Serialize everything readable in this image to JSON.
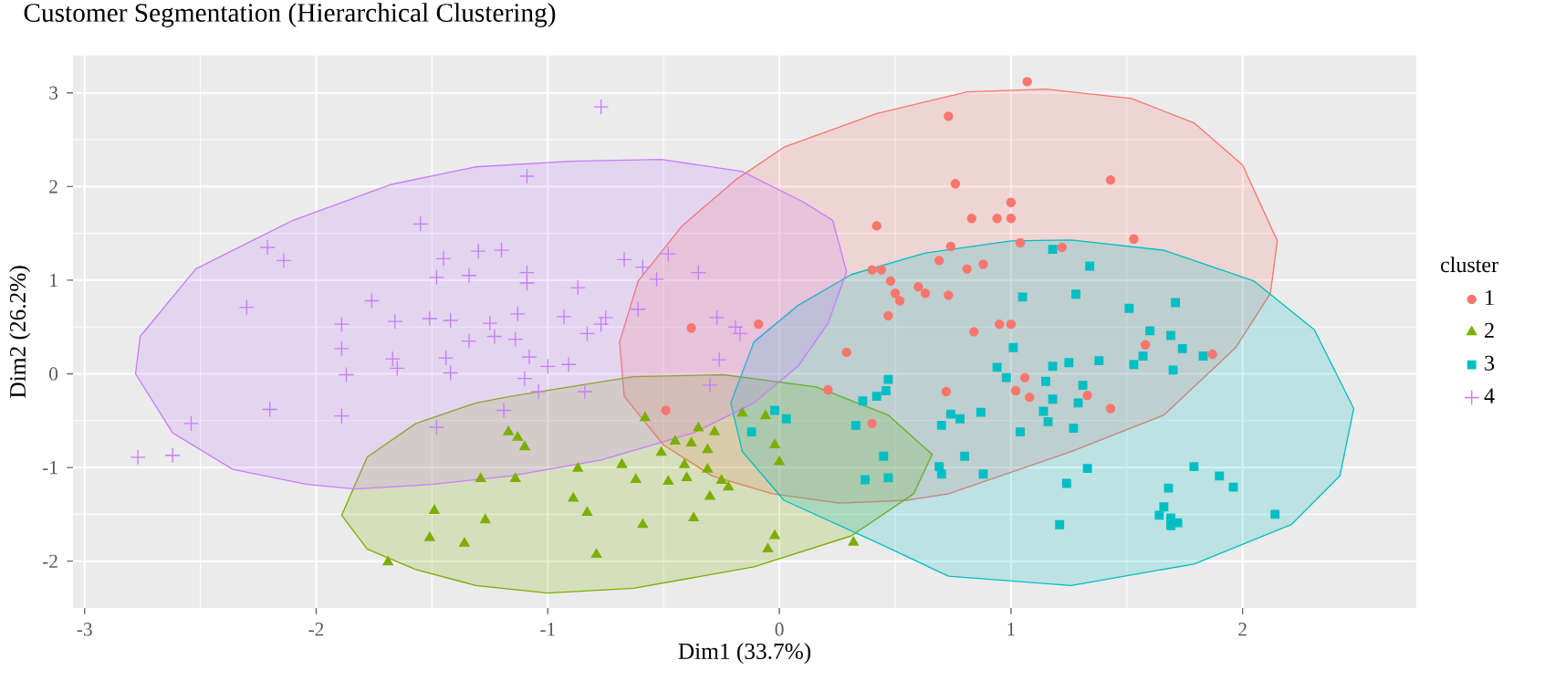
{
  "chart_data": {
    "type": "scatter",
    "title": "Customer Segmentation (Hierarchical Clustering)",
    "xlabel": "Dim1 (33.7%)",
    "ylabel": "Dim2 (26.2%)",
    "legend_title": "cluster",
    "legend": "right",
    "grid": true,
    "xlim": [
      -3.05,
      2.75
    ],
    "ylim": [
      -2.5,
      3.4
    ],
    "xticks": [
      -3,
      -2,
      -1,
      0,
      1,
      2
    ],
    "yticks": [
      -2,
      -1,
      0,
      1,
      2,
      3
    ],
    "series": [
      {
        "name": "1",
        "marker": "circle",
        "color": "#f8766d",
        "x": [
          0.73,
          0.76,
          0.42,
          0.74,
          0.69,
          0.4,
          0.44,
          0.48,
          0.6,
          0.63,
          0.5,
          0.52,
          0.73,
          0.47,
          0.29,
          0.21,
          0.4,
          0.72,
          -0.38,
          -0.09,
          -0.49,
          0.81,
          1.07,
          1.43,
          1.0,
          0.83,
          0.94,
          1.0,
          1.53,
          1.04,
          1.22,
          0.88,
          0.95,
          1.0,
          0.84,
          1.58,
          1.87,
          1.06,
          1.02,
          1.08,
          1.33,
          1.43
        ],
        "values": [
          2.75,
          2.03,
          1.58,
          1.36,
          1.21,
          1.11,
          1.11,
          0.99,
          0.93,
          0.86,
          0.86,
          0.78,
          0.84,
          0.62,
          0.23,
          -0.17,
          -0.53,
          -0.19,
          0.49,
          0.53,
          -0.39,
          1.12,
          3.12,
          2.07,
          1.83,
          1.66,
          1.66,
          1.66,
          1.44,
          1.4,
          1.35,
          1.17,
          0.53,
          0.53,
          0.45,
          0.31,
          0.21,
          -0.04,
          -0.18,
          -0.25,
          -0.23,
          -0.37
        ]
      },
      {
        "name": "2",
        "marker": "triangle",
        "color": "#7cae00",
        "x": [
          -1.49,
          -1.51,
          -1.36,
          -1.27,
          -1.69,
          -1.29,
          -1.14,
          -1.17,
          -1.13,
          -1.1,
          -0.87,
          -0.68,
          -0.62,
          -0.48,
          -0.4,
          -0.41,
          -0.31,
          -0.25,
          -0.22,
          -0.51,
          -0.45,
          -0.38,
          -0.31,
          -0.35,
          -0.28,
          -0.58,
          -0.16,
          -0.06,
          -0.02,
          0.0,
          -0.89,
          -0.83,
          -0.59,
          -0.37,
          -0.3,
          -0.79,
          -0.02,
          -0.05,
          0.32
        ],
        "values": [
          -1.46,
          -1.75,
          -1.81,
          -1.56,
          -2.01,
          -1.12,
          -1.12,
          -0.62,
          -0.68,
          -0.78,
          -1.01,
          -0.97,
          -1.13,
          -1.15,
          -1.11,
          -0.97,
          -1.02,
          -1.14,
          -1.21,
          -0.84,
          -0.72,
          -0.74,
          -0.81,
          -0.58,
          -0.62,
          -0.47,
          -0.42,
          -0.45,
          -0.76,
          -0.94,
          -1.33,
          -1.48,
          -1.61,
          -1.54,
          -1.31,
          -1.93,
          -1.73,
          -1.87,
          -1.8
        ]
      },
      {
        "name": "3",
        "marker": "square",
        "color": "#00bfc4",
        "x": [
          0.47,
          0.46,
          0.42,
          0.36,
          -0.02,
          0.03,
          -0.12,
          0.33,
          0.7,
          0.74,
          0.78,
          0.45,
          0.8,
          0.69,
          0.7,
          0.47,
          0.37,
          1.18,
          1.34,
          1.05,
          1.28,
          1.51,
          1.71,
          1.6,
          1.69,
          1.74,
          1.83,
          1.57,
          1.53,
          1.7,
          1.38,
          1.25,
          1.18,
          1.01,
          0.94,
          0.98,
          1.15,
          1.31,
          1.18,
          1.29,
          1.14,
          1.16,
          1.27,
          1.04,
          0.87,
          0.88,
          1.33,
          1.24,
          1.21,
          1.79,
          1.9,
          1.96,
          1.68,
          1.66,
          1.64,
          1.69,
          1.69,
          1.72,
          2.14
        ],
        "values": [
          -0.06,
          -0.18,
          -0.24,
          -0.29,
          -0.39,
          -0.48,
          -0.62,
          -0.55,
          -0.55,
          -0.43,
          -0.48,
          -0.88,
          -0.88,
          -0.99,
          -1.07,
          -1.11,
          -1.13,
          1.33,
          1.15,
          0.82,
          0.85,
          0.7,
          0.76,
          0.46,
          0.41,
          0.27,
          0.19,
          0.19,
          0.1,
          0.04,
          0.14,
          0.12,
          0.08,
          0.28,
          0.07,
          -0.04,
          -0.08,
          -0.12,
          -0.27,
          -0.31,
          -0.4,
          -0.51,
          -0.58,
          -0.62,
          -0.41,
          -1.07,
          -1.01,
          -1.17,
          -1.61,
          -0.99,
          -1.09,
          -1.21,
          -1.22,
          -1.42,
          -1.51,
          -1.54,
          -1.62,
          -1.59,
          -1.5
        ]
      },
      {
        "name": "4",
        "marker": "cross",
        "color": "#c77cff",
        "x": [
          -1.55,
          -2.21,
          -2.14,
          -1.45,
          -1.48,
          -1.34,
          -1.3,
          -1.2,
          -2.3,
          -1.76,
          -1.89,
          -1.66,
          -1.51,
          -1.42,
          -1.25,
          -1.13,
          -1.34,
          -1.23,
          -1.14,
          -1.89,
          -1.67,
          -1.65,
          -1.44,
          -1.42,
          -1.87,
          -2.2,
          -1.89,
          -1.19,
          -2.54,
          -2.77,
          -2.62,
          -1.48,
          -0.77,
          -1.09,
          -0.67,
          -0.59,
          -0.48,
          -0.53,
          -0.35,
          -1.09,
          -1.09,
          -0.87,
          -0.93,
          -0.75,
          -0.77,
          -0.61,
          -0.27,
          -0.19,
          -0.17,
          -0.83,
          -1.08,
          -1.0,
          -0.91,
          -0.26,
          -1.1,
          -0.84,
          -0.3,
          -1.04
        ],
        "values": [
          1.6,
          1.35,
          1.21,
          1.23,
          1.03,
          1.05,
          1.31,
          1.32,
          0.71,
          0.78,
          0.53,
          0.56,
          0.59,
          0.57,
          0.54,
          0.64,
          0.35,
          0.4,
          0.37,
          0.27,
          0.16,
          0.06,
          0.17,
          0.01,
          -0.01,
          -0.38,
          -0.45,
          -0.39,
          -0.53,
          -0.89,
          -0.87,
          -0.57,
          2.85,
          2.11,
          1.22,
          1.14,
          1.28,
          1.01,
          1.08,
          1.08,
          0.97,
          0.92,
          0.61,
          0.6,
          0.53,
          0.69,
          0.6,
          0.5,
          0.43,
          0.43,
          0.18,
          0.08,
          0.1,
          0.15,
          -0.05,
          -0.19,
          -0.12,
          -0.19
        ]
      },
      {
        "type": "area",
        "color": "#f8766d",
        "x": [
          -0.69,
          -0.61,
          -0.42,
          -0.19,
          0.02,
          0.42,
          0.81,
          1.15,
          1.52,
          1.79,
          2.0,
          2.15,
          2.12,
          1.97,
          1.66,
          1.26,
          0.73,
          0.55,
          0.26,
          -0.03,
          -0.29,
          -0.5,
          -0.67,
          -0.69
        ],
        "values": [
          0.34,
          0.99,
          1.58,
          2.07,
          2.42,
          2.78,
          3.01,
          3.04,
          2.94,
          2.68,
          2.23,
          1.42,
          0.86,
          0.28,
          -0.44,
          -0.83,
          -1.28,
          -1.35,
          -1.38,
          -1.28,
          -1.09,
          -0.76,
          -0.24,
          0.34
        ]
      },
      {
        "type": "area",
        "color": "#7cae00",
        "x": [
          -1.89,
          -1.78,
          -1.57,
          -1.31,
          -1.16,
          -0.63,
          -0.24,
          0.16,
          0.47,
          0.66,
          0.58,
          0.31,
          -0.11,
          -0.63,
          -1.0,
          -1.31,
          -1.57,
          -1.78,
          -1.89
        ],
        "values": [
          -1.51,
          -0.89,
          -0.53,
          -0.31,
          -0.24,
          -0.03,
          -0.01,
          -0.14,
          -0.44,
          -0.86,
          -1.28,
          -1.73,
          -2.06,
          -2.29,
          -2.34,
          -2.26,
          -2.09,
          -1.87,
          -1.51
        ]
      },
      {
        "type": "area",
        "color": "#00bfc4",
        "x": [
          -0.21,
          -0.11,
          0.08,
          0.31,
          0.63,
          1.0,
          1.26,
          1.66,
          2.05,
          2.31,
          2.48,
          2.42,
          2.21,
          1.79,
          1.26,
          0.73,
          0.42,
          0.02,
          -0.16,
          -0.21
        ],
        "values": [
          -0.31,
          0.34,
          0.73,
          1.06,
          1.29,
          1.42,
          1.43,
          1.32,
          0.99,
          0.47,
          -0.37,
          -1.09,
          -1.61,
          -2.03,
          -2.26,
          -2.16,
          -1.8,
          -1.35,
          -0.83,
          -0.31
        ]
      },
      {
        "type": "area",
        "color": "#c77cff",
        "x": [
          -2.78,
          -2.76,
          -2.52,
          -2.1,
          -1.68,
          -1.31,
          -0.9,
          -0.51,
          -0.16,
          0.1,
          0.23,
          0.29,
          0.21,
          0.08,
          -0.11,
          -0.37,
          -0.77,
          -1.16,
          -1.5,
          -1.83,
          -2.04,
          -2.36,
          -2.62,
          -2.78
        ],
        "values": [
          0.0,
          0.4,
          1.12,
          1.64,
          2.02,
          2.21,
          2.27,
          2.29,
          2.16,
          1.84,
          1.64,
          1.09,
          0.54,
          0.08,
          -0.31,
          -0.63,
          -0.92,
          -1.09,
          -1.18,
          -1.23,
          -1.18,
          -1.02,
          -0.63,
          0.0
        ]
      }
    ]
  }
}
